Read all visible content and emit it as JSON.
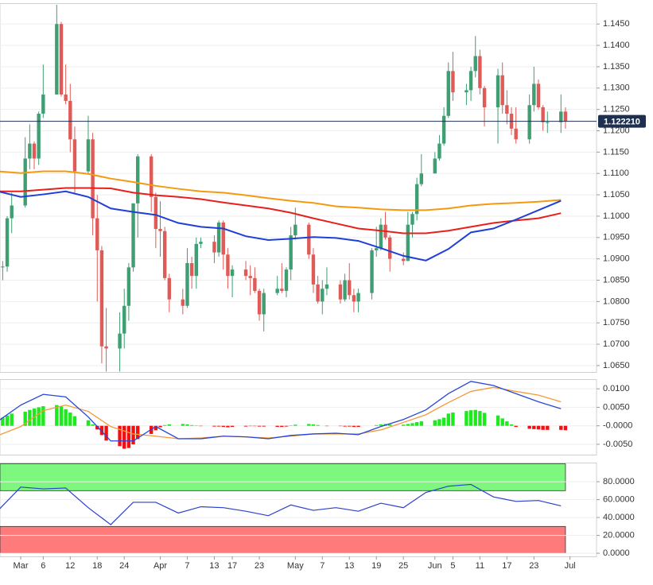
{
  "chart_data": [
    {
      "type": "candlestick",
      "xlim": [
        -4.6,
        127.9
      ],
      "xticks": [
        {
          "value": 0,
          "label": "Mar"
        },
        {
          "value": 5,
          "label": "6"
        },
        {
          "value": 11,
          "label": "12"
        },
        {
          "value": 17,
          "label": "18"
        },
        {
          "value": 23,
          "label": "24"
        },
        {
          "value": 31,
          "label": "Apr"
        },
        {
          "value": 37,
          "label": "7"
        },
        {
          "value": 43,
          "label": "13"
        },
        {
          "value": 47,
          "label": "17"
        },
        {
          "value": 53,
          "label": "23"
        },
        {
          "value": 61,
          "label": "May"
        },
        {
          "value": 67,
          "label": "7"
        },
        {
          "value": 73,
          "label": "13"
        },
        {
          "value": 79,
          "label": "19"
        },
        {
          "value": 85,
          "label": "25"
        },
        {
          "value": 92,
          "label": "Jun"
        },
        {
          "value": 96,
          "label": "5"
        },
        {
          "value": 102,
          "label": "11"
        },
        {
          "value": 108,
          "label": "17"
        },
        {
          "value": 114,
          "label": "23"
        },
        {
          "value": 122,
          "label": "Jul"
        }
      ],
      "ylim": [
        1.0635,
        1.1497
      ],
      "yticks": [
        {
          "value": 1.065,
          "label": "1.0650"
        },
        {
          "value": 1.07,
          "label": "1.0700"
        },
        {
          "value": 1.075,
          "label": "1.0750"
        },
        {
          "value": 1.08,
          "label": "1.0800"
        },
        {
          "value": 1.085,
          "label": "1.0850"
        },
        {
          "value": 1.09,
          "label": "1.0900"
        },
        {
          "value": 1.095,
          "label": "1.0950"
        },
        {
          "value": 1.1,
          "label": "1.1000"
        },
        {
          "value": 1.105,
          "label": "1.1050"
        },
        {
          "value": 1.11,
          "label": "1.1100"
        },
        {
          "value": 1.115,
          "label": "1.1150"
        },
        {
          "value": 1.12,
          "label": "1.1200"
        },
        {
          "value": 1.125,
          "label": "1.1250"
        },
        {
          "value": 1.13,
          "label": "1.1300"
        },
        {
          "value": 1.135,
          "label": "1.1350"
        },
        {
          "value": 1.14,
          "label": "1.1400"
        },
        {
          "value": 1.145,
          "label": "1.1450"
        }
      ],
      "grid": true,
      "up_color": "#3f9e72",
      "down_color": "#df5b57",
      "x": [
        -4,
        -3,
        -2,
        1,
        2,
        3,
        4,
        5,
        8,
        9,
        10,
        11,
        12,
        15,
        16,
        17,
        18,
        19,
        22,
        23,
        24,
        25,
        26,
        29,
        30,
        31,
        32,
        33,
        36,
        37,
        38,
        39,
        40,
        43,
        44,
        45,
        46,
        47,
        50,
        51,
        52,
        53,
        54,
        57,
        58,
        59,
        60,
        61,
        64,
        65,
        66,
        67,
        68,
        71,
        72,
        73,
        74,
        75,
        78,
        79,
        80,
        81,
        82,
        85,
        86,
        87,
        88,
        89,
        92,
        93,
        94,
        95,
        96,
        99,
        100,
        101,
        102,
        103,
        106,
        107,
        108,
        109,
        110,
        113,
        114,
        115,
        116,
        117,
        120,
        121
      ],
      "open": [
        1.088,
        1.0882,
        1.0995,
        1.1025,
        1.1135,
        1.117,
        1.1135,
        1.124,
        1.1285,
        1.145,
        1.1285,
        1.127,
        1.118,
        1.1105,
        1.118,
        1.0995,
        1.092,
        1.0695,
        1.069,
        1.0725,
        1.079,
        1.088,
        1.103,
        1.114,
        1.1045,
        1.097,
        1.0965,
        1.0855,
        1.0805,
        1.079,
        1.089,
        1.086,
        1.0935,
        1.094,
        1.0915,
        1.0985,
        1.091,
        1.086,
        1.0875,
        1.086,
        1.0855,
        1.0825,
        1.077,
        1.082,
        1.083,
        1.0825,
        1.0875,
        1.0955,
        1.098,
        1.091,
        1.084,
        1.08,
        1.083,
        1.084,
        1.0805,
        1.085,
        1.0815,
        1.08,
        1.082,
        1.092,
        1.0925,
        1.098,
        1.095,
        1.09,
        1.0895,
        1.098,
        1.1005,
        1.1075,
        1.11,
        1.1135,
        1.117,
        1.1235,
        1.134,
        1.129,
        1.1295,
        1.134,
        1.1375,
        1.13,
        1.1255,
        1.133,
        1.126,
        1.124,
        1.1205,
        1.118,
        1.126,
        1.131,
        1.1255,
        1.122,
        1.122,
        1.1245
      ],
      "high": [
        1.0895,
        1.1,
        1.1055,
        1.1185,
        1.1215,
        1.1175,
        1.1245,
        1.1355,
        1.1495,
        1.1455,
        1.1355,
        1.131,
        1.121,
        1.1235,
        1.1195,
        1.105,
        1.093,
        1.0785,
        1.0775,
        1.083,
        1.089,
        1.103,
        1.1145,
        1.1145,
        1.1055,
        1.1035,
        1.0975,
        1.0865,
        1.083,
        1.0925,
        1.0905,
        1.095,
        1.095,
        1.0955,
        1.099,
        1.099,
        1.0925,
        1.0885,
        1.0895,
        1.0885,
        1.088,
        1.083,
        1.083,
        1.086,
        1.089,
        1.088,
        1.0975,
        1.102,
        1.0985,
        1.0925,
        1.086,
        1.085,
        1.088,
        1.085,
        1.0865,
        1.089,
        1.083,
        1.083,
        1.0925,
        1.0975,
        1.0995,
        1.101,
        1.0955,
        1.0915,
        1.101,
        1.101,
        1.109,
        1.1145,
        1.115,
        1.119,
        1.1255,
        1.136,
        1.1385,
        1.131,
        1.135,
        1.1422,
        1.139,
        1.1305,
        1.1345,
        1.136,
        1.1295,
        1.1255,
        1.1255,
        1.1285,
        1.135,
        1.132,
        1.126,
        1.1245,
        1.1285,
        1.1255
      ],
      "low": [
        1.085,
        1.087,
        1.096,
        1.102,
        1.111,
        1.111,
        1.112,
        1.123,
        1.1285,
        1.128,
        1.1262,
        1.115,
        1.1055,
        1.11,
        1.0955,
        1.08,
        1.0655,
        1.0636,
        1.0636,
        1.069,
        1.0755,
        1.087,
        1.095,
        1.101,
        1.0925,
        1.0905,
        1.085,
        1.0775,
        1.077,
        1.0785,
        1.083,
        1.083,
        1.0925,
        1.089,
        1.0905,
        1.0875,
        1.083,
        1.081,
        1.085,
        1.0815,
        1.082,
        1.0755,
        1.073,
        1.0815,
        1.082,
        1.081,
        1.085,
        1.0945,
        1.09,
        1.082,
        1.0795,
        1.077,
        1.0815,
        1.0795,
        1.08,
        1.0805,
        1.0775,
        1.0775,
        1.0805,
        1.0905,
        1.092,
        1.0945,
        1.087,
        1.0885,
        1.0895,
        1.095,
        1.099,
        1.107,
        1.11,
        1.113,
        1.1165,
        1.123,
        1.127,
        1.126,
        1.127,
        1.1325,
        1.1285,
        1.121,
        1.117,
        1.124,
        1.1215,
        1.119,
        1.117,
        1.117,
        1.1245,
        1.125,
        1.12,
        1.1195,
        1.1195,
        1.1205
      ],
      "close": [
        1.0882,
        1.0995,
        1.1025,
        1.1135,
        1.117,
        1.1135,
        1.124,
        1.1285,
        1.145,
        1.1285,
        1.127,
        1.118,
        1.1105,
        1.118,
        1.0995,
        1.092,
        1.0695,
        1.069,
        1.0725,
        1.079,
        1.088,
        1.103,
        1.114,
        1.1045,
        1.097,
        1.0965,
        1.0855,
        1.0805,
        1.079,
        1.089,
        1.086,
        1.0935,
        1.094,
        1.0915,
        1.0985,
        1.091,
        1.086,
        1.0875,
        1.086,
        1.0855,
        1.0825,
        1.077,
        1.082,
        1.083,
        1.0825,
        1.0875,
        1.0955,
        1.098,
        1.091,
        1.084,
        1.08,
        1.083,
        1.084,
        1.0805,
        1.085,
        1.0815,
        1.08,
        1.082,
        1.092,
        1.0925,
        1.098,
        1.095,
        1.09,
        1.0895,
        1.098,
        1.1005,
        1.1075,
        1.11,
        1.1135,
        1.117,
        1.1235,
        1.134,
        1.129,
        1.1295,
        1.134,
        1.1375,
        1.13,
        1.1255,
        1.133,
        1.126,
        1.124,
        1.1205,
        1.118,
        1.126,
        1.131,
        1.1255,
        1.122,
        1.122,
        1.1245,
        1.1222
      ],
      "lines_x": [
        -5,
        0,
        5,
        10,
        15,
        20,
        25,
        30,
        35,
        40,
        45,
        50,
        55,
        60,
        65,
        70,
        75,
        80,
        85,
        90,
        95,
        100,
        105,
        110,
        115,
        120
      ],
      "lines": [
        {
          "color": "#f59a0f",
          "values": [
            1.1105,
            1.1101,
            1.1105,
            1.1105,
            1.1099,
            1.1088,
            1.108,
            1.1071,
            1.1064,
            1.1058,
            1.1055,
            1.1049,
            1.1042,
            1.1036,
            1.1031,
            1.1023,
            1.102,
            1.1016,
            1.1014,
            1.1014,
            1.1018,
            1.1025,
            1.1029,
            1.1031,
            1.1034,
            1.1038
          ]
        },
        {
          "color": "#e8201c",
          "values": [
            1.1058,
            1.1058,
            1.1062,
            1.1066,
            1.1066,
            1.1065,
            1.1055,
            1.1049,
            1.1045,
            1.104,
            1.1032,
            1.1025,
            1.1018,
            1.1008,
            1.0995,
            1.0983,
            1.0971,
            1.0966,
            1.096,
            1.096,
            1.0966,
            1.0975,
            1.0984,
            1.099,
            1.0995,
            1.1007
          ]
        },
        {
          "color": "#1f3fd8",
          "values": [
            1.1058,
            1.1045,
            1.1051,
            1.1058,
            1.1045,
            1.1018,
            1.101,
            1.1003,
            1.0984,
            1.0975,
            1.0971,
            1.0953,
            1.0944,
            1.0947,
            1.0951,
            1.0949,
            1.0942,
            1.0925,
            1.0907,
            1.0896,
            1.0923,
            1.0962,
            1.0971,
            1.0992,
            1.1014,
            1.1036
          ]
        }
      ],
      "last_price": {
        "value": 1.12221,
        "label": "1.122210"
      },
      "last_price_color": "#1e3050"
    },
    {
      "type": "macd",
      "ylim": [
        -0.0078,
        0.0124
      ],
      "yticks": [
        {
          "value": -0.005,
          "label": "-0.0050"
        },
        {
          "value": 0,
          "label": "-0.0000"
        },
        {
          "value": 0.005,
          "label": "0.0050"
        },
        {
          "value": 0.01,
          "label": "0.0100"
        }
      ],
      "hist_up_color": "#1ee81e",
      "hist_down_color": "#f21010",
      "hist": [
        0.0022,
        0.0028,
        0.0033,
        0.0038,
        0.0043,
        0.0047,
        0.005,
        0.0053,
        0.0056,
        0.0052,
        0.0045,
        0.0036,
        0.0026,
        0.0015,
        0.0004,
        -0.001,
        -0.0025,
        -0.004,
        -0.0055,
        -0.0062,
        -0.006,
        -0.005,
        -0.0036,
        -0.0022,
        -0.0012,
        -0.0004,
        0.0002,
        0.0004,
        0.0005,
        0.0004,
        0.0002,
        0.0001,
        -0.0001,
        -0.0002,
        -0.0002,
        -0.0003,
        -0.0004,
        -0.0003,
        -0.0002,
        -0.0001,
        -0.0001,
        -0.0002,
        -0.0002,
        -0.0003,
        -0.0003,
        -0.0002,
        0.0001,
        0.0003,
        0.0005,
        0.0004,
        0.0002,
        0.0,
        -0.0001,
        -0.0001,
        -0.0002,
        -0.0002,
        -0.0003,
        -0.0003,
        0.0,
        0.0002,
        0.0004,
        0.0005,
        0.0004,
        0.0003,
        0.0005,
        0.0007,
        0.001,
        0.0012,
        0.0015,
        0.0018,
        0.0022,
        0.0033,
        0.0036,
        0.004,
        0.0042,
        0.0043,
        0.004,
        0.0035,
        0.0028,
        0.002,
        0.0012,
        0.0004,
        -0.0003,
        -0.0008,
        -0.0009,
        -0.001,
        -0.0011,
        -0.0011,
        -0.0011,
        -0.0012
      ],
      "x": [
        -5,
        0,
        5,
        10,
        15,
        20,
        25,
        30,
        35,
        40,
        45,
        50,
        55,
        60,
        65,
        70,
        75,
        80,
        85,
        90,
        95,
        100,
        105,
        110,
        115,
        120
      ],
      "lines": [
        {
          "color": "#f59a3a",
          "values": [
            -0.0026,
            -0.0002,
            0.0041,
            0.0056,
            0.0039,
            -0.0002,
            -0.0022,
            -0.0028,
            -0.0035,
            -0.0033,
            -0.0028,
            -0.003,
            -0.0033,
            -0.0028,
            -0.0022,
            -0.0022,
            -0.0022,
            -0.0011,
            0.0009,
            0.003,
            0.0063,
            0.0093,
            0.0104,
            0.0093,
            0.0083,
            0.0065
          ]
        },
        {
          "color": "#2746d8",
          "values": [
            0.0013,
            0.0056,
            0.0085,
            0.0078,
            0.0024,
            -0.0041,
            -0.0041,
            -0.0002,
            -0.0035,
            -0.0035,
            -0.0028,
            -0.003,
            -0.0035,
            -0.0026,
            -0.0022,
            -0.002,
            -0.0024,
            -0.0002,
            0.0017,
            0.0043,
            0.0087,
            0.012,
            0.0109,
            0.0087,
            0.0065,
            0.0046
          ]
        }
      ]
    },
    {
      "type": "rsi",
      "ylim": [
        -3.5,
        100.5
      ],
      "yticks": [
        {
          "value": 0,
          "label": "0.0000"
        },
        {
          "value": 20,
          "label": "20.0000"
        },
        {
          "value": 40,
          "label": "40.0000"
        },
        {
          "value": 60,
          "label": "60.0000"
        },
        {
          "value": 80,
          "label": "80.0000"
        }
      ],
      "bands": [
        {
          "from": 70,
          "to": 100,
          "color": "#7df77d"
        },
        {
          "from": 0,
          "to": 30,
          "color": "#ff7b7b"
        }
      ],
      "x": [
        -5,
        0,
        5,
        10,
        15,
        20,
        25,
        30,
        35,
        40,
        45,
        50,
        55,
        60,
        65,
        70,
        75,
        80,
        85,
        90,
        95,
        100,
        105,
        110,
        115,
        120
      ],
      "color": "#2b3fcf",
      "values": [
        48,
        74,
        72,
        73,
        51,
        32,
        57,
        57,
        45,
        52,
        51,
        47,
        42,
        54,
        48,
        51,
        47,
        56,
        51,
        68,
        75,
        77,
        63,
        58,
        59,
        53
      ]
    }
  ]
}
